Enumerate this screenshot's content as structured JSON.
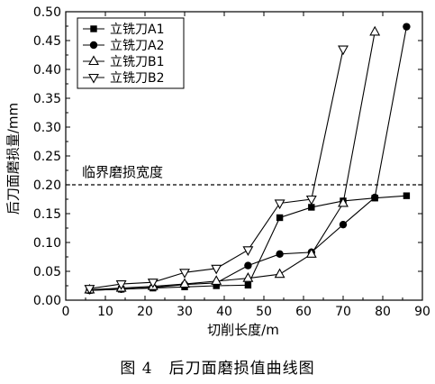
{
  "chart_data": {
    "type": "line",
    "title": "",
    "xlabel": "切削长度/m",
    "ylabel": "后刀面磨损量/mm",
    "xlim": [
      0,
      90
    ],
    "ylim": [
      0.0,
      0.5
    ],
    "xticks": [
      0,
      10,
      20,
      30,
      40,
      50,
      60,
      70,
      80,
      90
    ],
    "yticks": [
      "0.00",
      "0.05",
      "0.10",
      "0.15",
      "0.20",
      "0.25",
      "0.30",
      "0.35",
      "0.40",
      "0.45",
      "0.50"
    ],
    "grid": false,
    "legend_position": "top-left",
    "reference_line": {
      "y": 0.2,
      "label": "临界磨损宽度",
      "style": "dashed"
    },
    "series": [
      {
        "name": "立铣刀A1",
        "marker": "square-filled",
        "x": [
          6,
          14,
          22,
          30,
          38,
          46,
          54,
          62,
          70,
          78,
          86
        ],
        "y": [
          0.017,
          0.019,
          0.021,
          0.023,
          0.025,
          0.026,
          0.143,
          0.161,
          0.172,
          0.177,
          0.181
        ]
      },
      {
        "name": "立铣刀A2",
        "marker": "circle-filled",
        "x": [
          6,
          14,
          22,
          30,
          38,
          46,
          54,
          62,
          70,
          78,
          86
        ],
        "y": [
          0.017,
          0.019,
          0.022,
          0.027,
          0.03,
          0.06,
          0.08,
          0.083,
          0.131,
          0.178,
          0.474
        ]
      },
      {
        "name": "立铣刀B1",
        "marker": "triangle-up-open",
        "x": [
          6,
          14,
          22,
          30,
          38,
          46,
          54,
          62,
          70,
          78
        ],
        "y": [
          0.018,
          0.021,
          0.024,
          0.028,
          0.033,
          0.038,
          0.045,
          0.08,
          0.168,
          0.465
        ]
      },
      {
        "name": "立铣刀B2",
        "marker": "triangle-down-open",
        "x": [
          6,
          14,
          22,
          30,
          38,
          46,
          54,
          62,
          70
        ],
        "y": [
          0.02,
          0.028,
          0.031,
          0.048,
          0.055,
          0.087,
          0.168,
          0.175,
          0.435
        ]
      }
    ]
  },
  "caption": "图 4　后刀面磨损值曲线图"
}
